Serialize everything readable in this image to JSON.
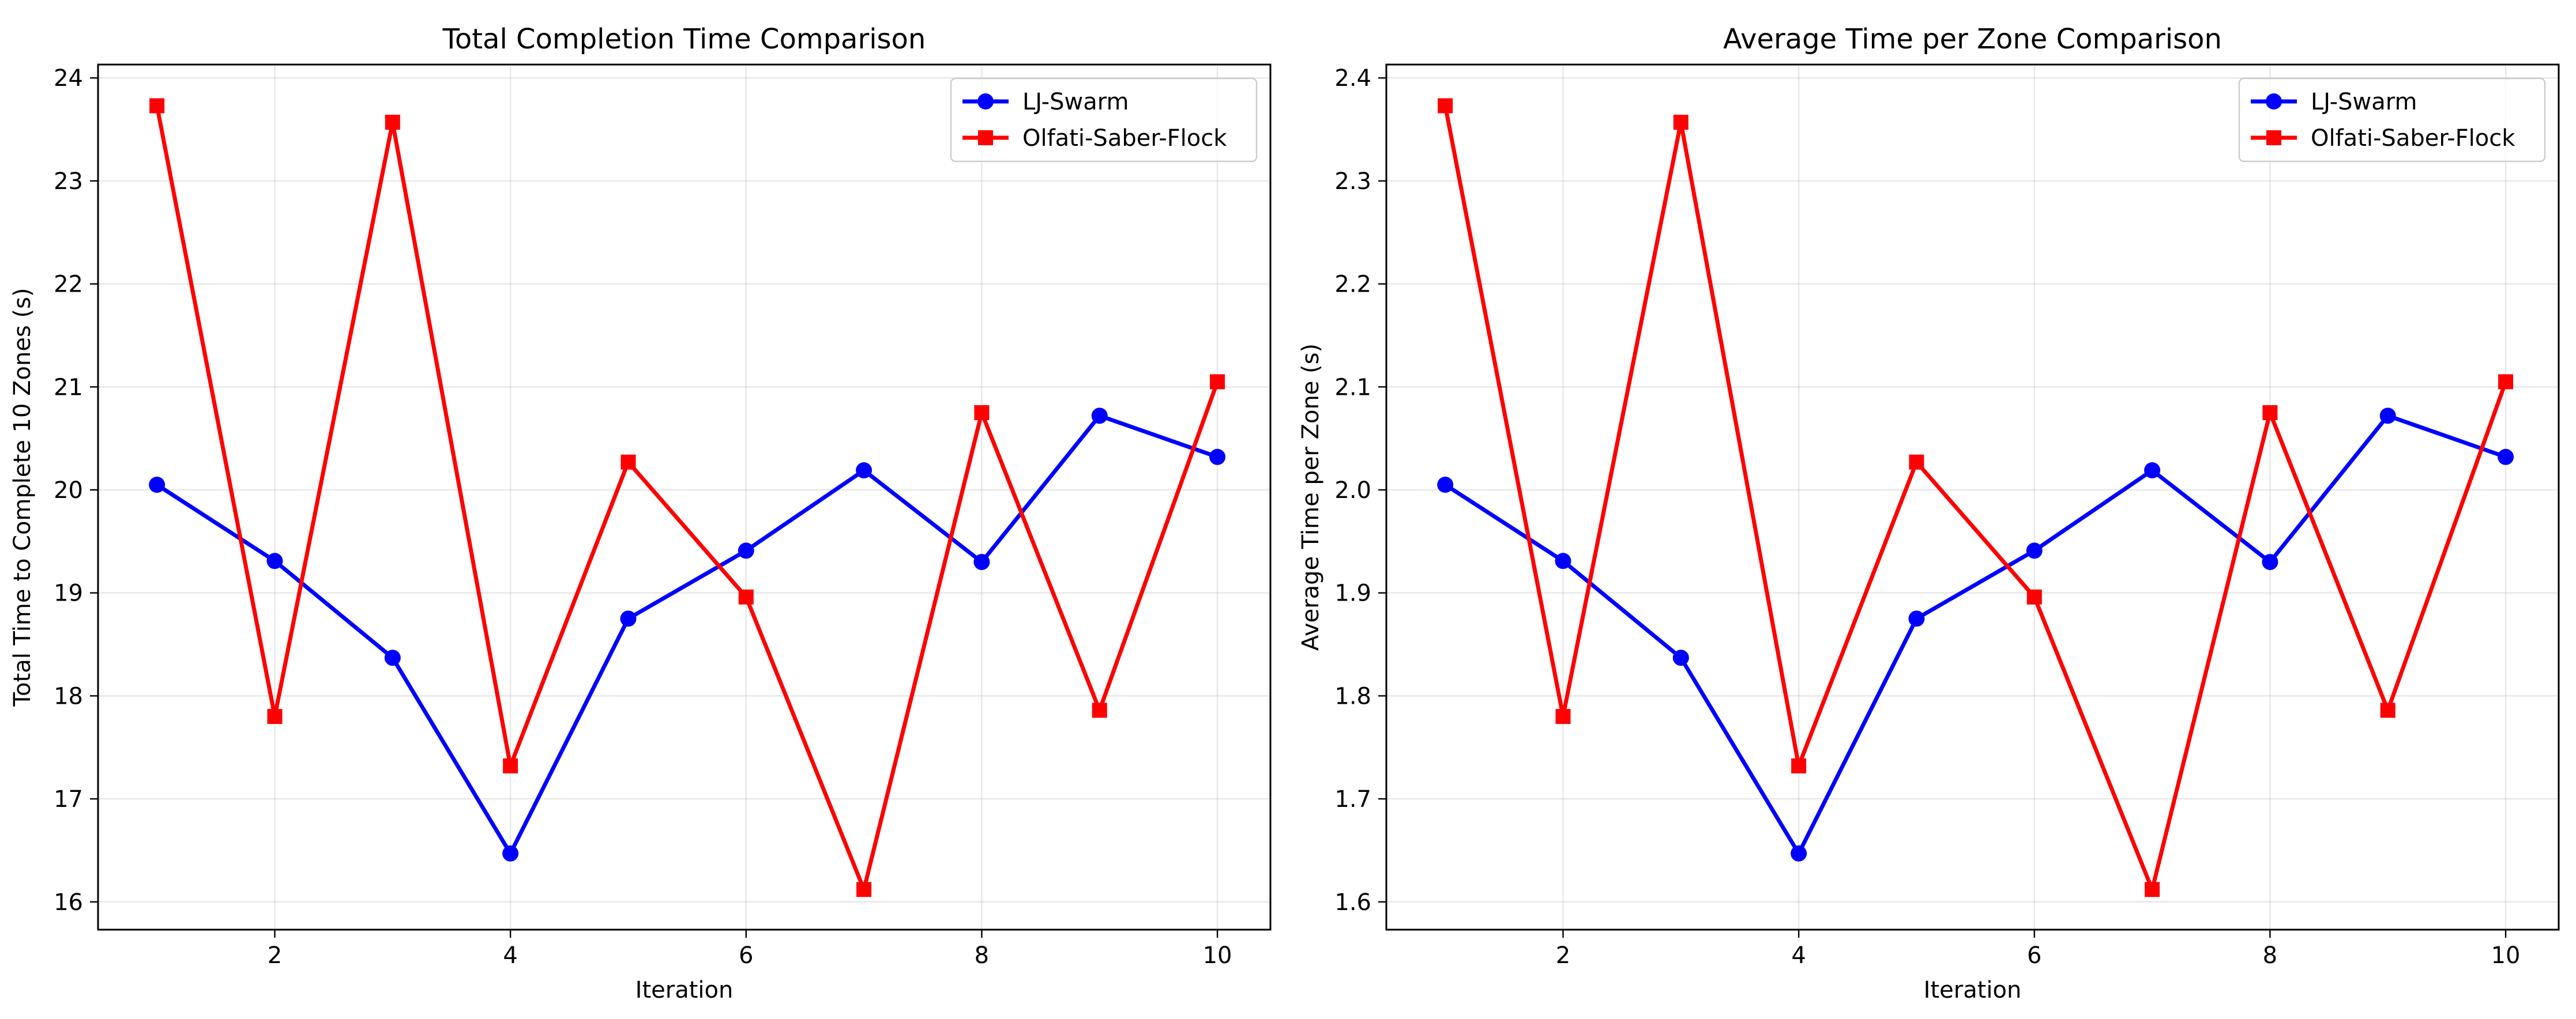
{
  "chart_data": [
    {
      "type": "line",
      "title": "Total Completion Time Comparison",
      "xlabel": "Iteration",
      "ylabel": "Total Time to Complete 10 Zones (s)",
      "xlim": [
        0.5,
        10.45
      ],
      "ylim": [
        15.73,
        24.13
      ],
      "xticks": [
        2,
        4,
        6,
        8,
        10
      ],
      "yticks": [
        16,
        17,
        18,
        19,
        20,
        21,
        22,
        23,
        24
      ],
      "ytick_decimals": 0,
      "grid": true,
      "legend_position": "top-right",
      "x": [
        1,
        2,
        3,
        4,
        5,
        6,
        7,
        8,
        9,
        10
      ],
      "series": [
        {
          "name": "LJ-Swarm",
          "color": "#0000ff",
          "marker": "circle",
          "values": [
            20.05,
            19.31,
            18.37,
            16.47,
            18.75,
            19.41,
            20.19,
            19.3,
            20.72,
            20.32
          ]
        },
        {
          "name": "Olfati-Saber-Flock",
          "color": "#ff0000",
          "marker": "square",
          "values": [
            23.73,
            17.8,
            23.57,
            17.32,
            20.27,
            18.96,
            16.12,
            20.75,
            17.86,
            21.05
          ]
        }
      ]
    },
    {
      "type": "line",
      "title": "Average Time per Zone Comparison",
      "xlabel": "Iteration",
      "ylabel": "Average Time per Zone (s)",
      "xlim": [
        0.5,
        10.45
      ],
      "ylim": [
        1.573,
        2.413
      ],
      "xticks": [
        2,
        4,
        6,
        8,
        10
      ],
      "yticks": [
        1.6,
        1.7,
        1.8,
        1.9,
        2.0,
        2.1,
        2.2,
        2.3,
        2.4
      ],
      "ytick_decimals": 1,
      "grid": true,
      "legend_position": "top-right",
      "x": [
        1,
        2,
        3,
        4,
        5,
        6,
        7,
        8,
        9,
        10
      ],
      "series": [
        {
          "name": "LJ-Swarm",
          "color": "#0000ff",
          "marker": "circle",
          "values": [
            2.005,
            1.931,
            1.837,
            1.647,
            1.875,
            1.941,
            2.019,
            1.93,
            2.072,
            2.032
          ]
        },
        {
          "name": "Olfati-Saber-Flock",
          "color": "#ff0000",
          "marker": "square",
          "values": [
            2.373,
            1.78,
            2.357,
            1.732,
            2.027,
            1.896,
            1.612,
            2.075,
            1.786,
            2.105
          ]
        }
      ]
    }
  ]
}
